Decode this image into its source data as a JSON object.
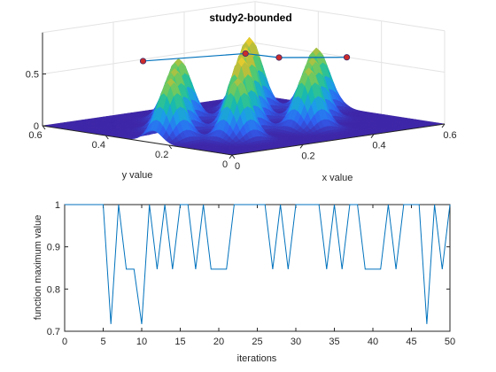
{
  "window": {
    "background": "#ffffff"
  },
  "chart_data": [
    {
      "type": "surface",
      "title": "study2-bounded",
      "xlabel": "x value",
      "ylabel": "y value",
      "zlabel": "",
      "xlim": [
        0,
        0.6
      ],
      "ylim": [
        0,
        0.6
      ],
      "zlim": [
        0,
        0.9
      ],
      "x_ticks": [
        "0",
        "0.2",
        "0.4",
        "0.6"
      ],
      "y_ticks": [
        "0",
        "0.2",
        "0.4",
        "0.6"
      ],
      "z_ticks": [
        "0",
        "0.5"
      ],
      "colormap": [
        "#3e26a8",
        "#2f62f3",
        "#1d9bea",
        "#19bcaa",
        "#58cb6b",
        "#bcbf3a",
        "#f9d229"
      ],
      "peaks": [
        {
          "x": 0.05,
          "y": 0.25,
          "z": 0.85
        },
        {
          "x": 0.15,
          "y": 0.15,
          "z": 0.85
        },
        {
          "x": 0.15,
          "y": 0.35,
          "z": 0.85
        },
        {
          "x": 0.25,
          "y": 0.25,
          "z": 1.0
        },
        {
          "x": 0.25,
          "y": 0.45,
          "z": 0.85
        },
        {
          "x": 0.35,
          "y": 0.15,
          "z": 0.85
        },
        {
          "x": 0.35,
          "y": 0.35,
          "z": 1.0
        },
        {
          "x": 0.45,
          "y": 0.25,
          "z": 0.85
        },
        {
          "x": 0.45,
          "y": 0.45,
          "z": 1.0
        },
        {
          "x": 0.55,
          "y": 0.35,
          "z": 0.85
        }
      ],
      "best_points": [
        {
          "x": 0.15,
          "y": 0.45,
          "z": 0.62
        },
        {
          "x": 0.35,
          "y": 0.35,
          "z": 0.64
        },
        {
          "x": 0.4,
          "y": 0.3,
          "z": 0.6
        },
        {
          "x": 0.52,
          "y": 0.22,
          "z": 0.58
        }
      ],
      "marker_color": "#cc2b2b",
      "path_color": "#0072bd",
      "grid": true
    },
    {
      "type": "line",
      "title": "",
      "xlabel": "iterations",
      "ylabel": "function maximum value",
      "xlim": [
        0,
        50
      ],
      "ylim": [
        0.7,
        1
      ],
      "x_ticks": [
        0,
        5,
        10,
        15,
        20,
        25,
        30,
        35,
        40,
        45,
        50
      ],
      "y_ticks": [
        0.7,
        0.8,
        0.9,
        1
      ],
      "grid": false,
      "series": [
        {
          "color": "#0072bd",
          "points": [
            [
              0,
              1
            ],
            [
              5,
              1
            ],
            [
              6,
              0.717
            ],
            [
              7,
              1
            ],
            [
              8,
              0.847
            ],
            [
              9,
              0.847
            ],
            [
              10,
              0.717
            ],
            [
              11,
              1
            ],
            [
              12,
              0.847
            ],
            [
              13,
              1
            ],
            [
              14,
              0.847
            ],
            [
              15,
              1
            ],
            [
              16,
              1
            ],
            [
              17,
              0.847
            ],
            [
              18,
              1
            ],
            [
              19,
              0.847
            ],
            [
              20,
              0.847
            ],
            [
              21,
              0.847
            ],
            [
              22,
              1
            ],
            [
              23,
              1
            ],
            [
              24,
              1
            ],
            [
              25,
              1
            ],
            [
              26,
              1
            ],
            [
              27,
              0.847
            ],
            [
              28,
              1
            ],
            [
              29,
              0.847
            ],
            [
              30,
              1
            ],
            [
              31,
              1
            ],
            [
              32,
              1
            ],
            [
              33,
              1
            ],
            [
              34,
              0.847
            ],
            [
              35,
              1
            ],
            [
              36,
              0.847
            ],
            [
              37,
              1
            ],
            [
              38,
              1
            ],
            [
              39,
              0.847
            ],
            [
              40,
              0.847
            ],
            [
              41,
              0.847
            ],
            [
              42,
              1
            ],
            [
              43,
              0.847
            ],
            [
              44,
              1
            ],
            [
              45,
              1
            ],
            [
              46,
              1
            ],
            [
              47,
              0.717
            ],
            [
              48,
              1
            ],
            [
              49,
              0.847
            ],
            [
              50,
              1
            ]
          ]
        }
      ]
    }
  ]
}
